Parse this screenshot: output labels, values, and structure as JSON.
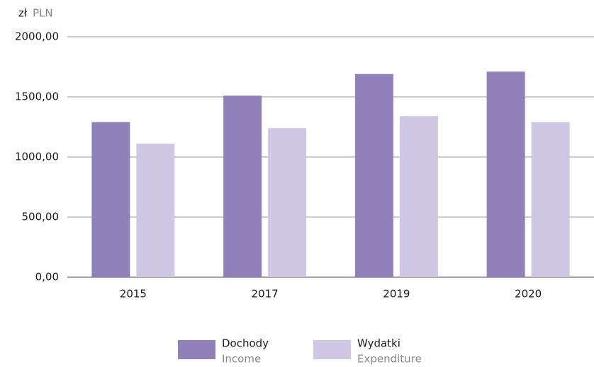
{
  "chart_data": {
    "type": "bar",
    "y_unit": "zł",
    "y_unit_en": "PLN",
    "categories": [
      "2015",
      "2017",
      "2019",
      "2020"
    ],
    "series": [
      {
        "name": "Dochody",
        "name_en": "Income",
        "color": "#9081bb",
        "values": [
          1290,
          1510,
          1690,
          1710
        ]
      },
      {
        "name": "Wydatki",
        "name_en": "Expenditure",
        "color": "#cfc7e3",
        "values": [
          1110,
          1240,
          1340,
          1290
        ]
      }
    ],
    "ylim": [
      0,
      2000
    ],
    "yticks": [
      {
        "value": 0,
        "label": "0,00"
      },
      {
        "value": 500,
        "label": "500,00"
      },
      {
        "value": 1000,
        "label": "1000,00"
      },
      {
        "value": 1500,
        "label": "1500,00"
      },
      {
        "value": 2000,
        "label": "2000,00"
      }
    ],
    "grid": true
  }
}
